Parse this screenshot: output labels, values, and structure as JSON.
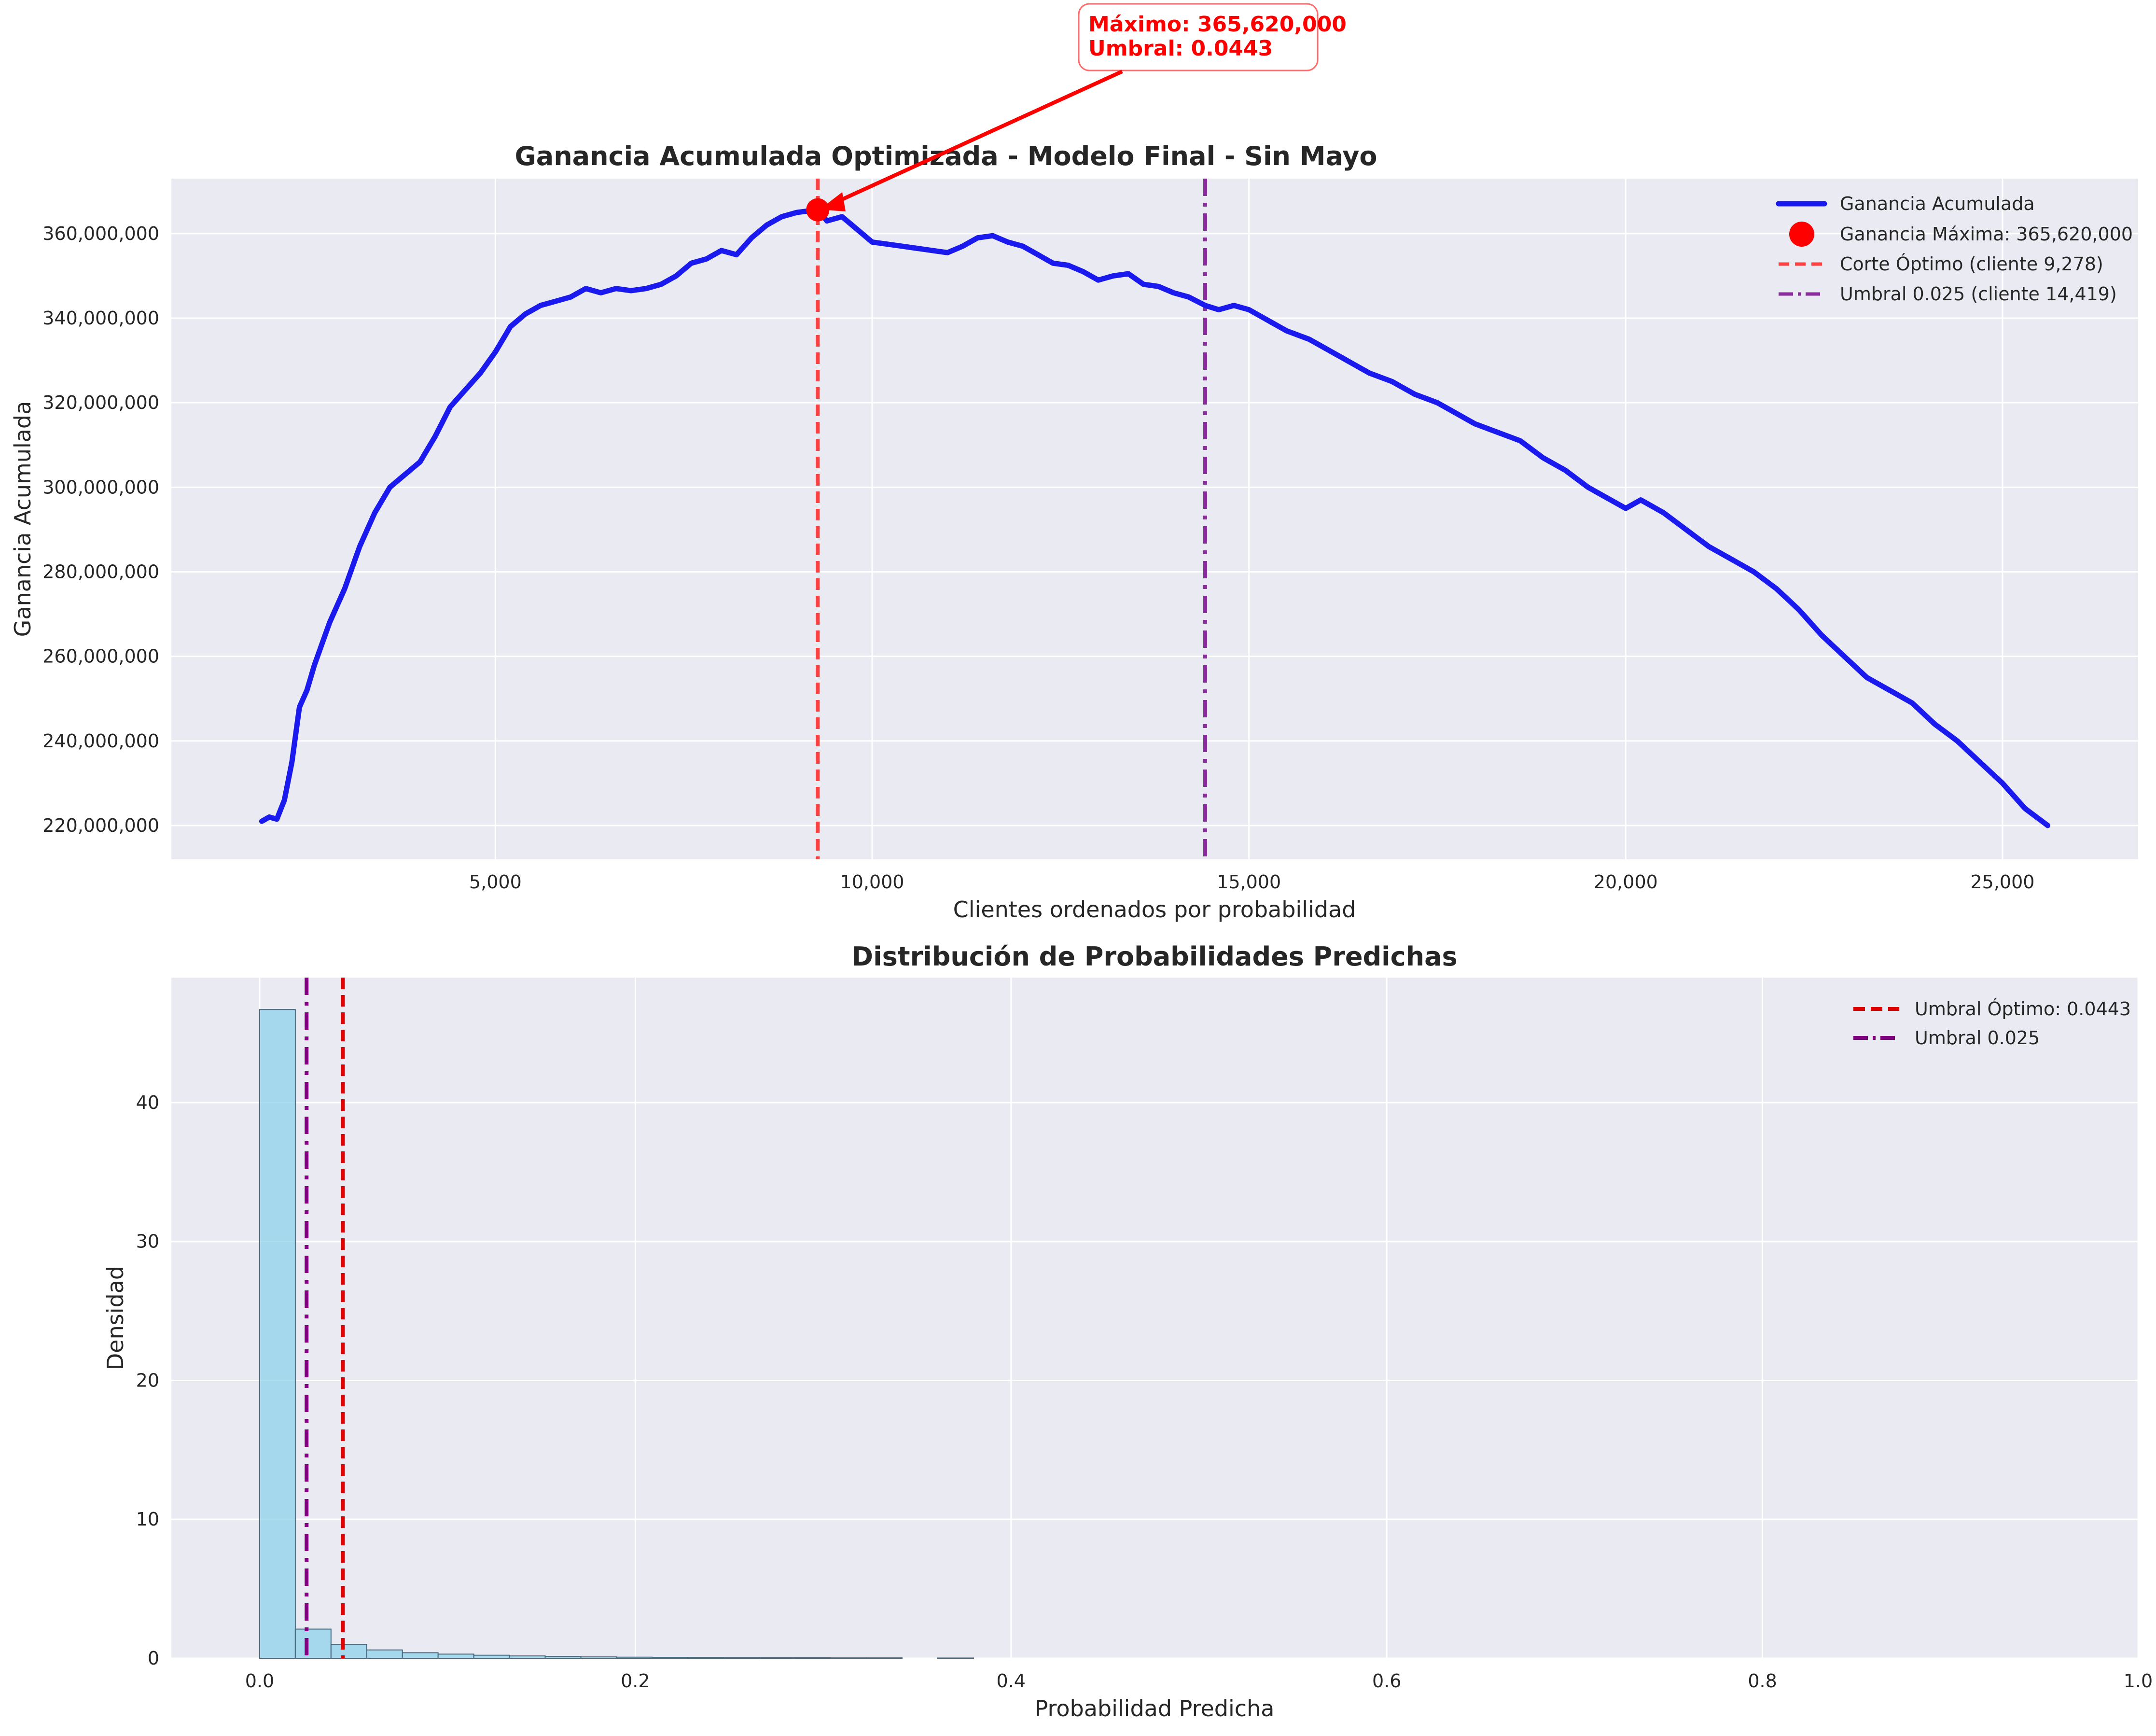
{
  "chart_data": [
    {
      "type": "line",
      "title": "Ganancia Acumulada Optimizada - Modelo Final - Sin Mayo",
      "xlabel": "Clientes ordenados por probabilidad",
      "ylabel": "Ganancia Acumulada",
      "xlim": [
        700,
        26800
      ],
      "ylim": [
        212000000,
        373000000
      ],
      "xticks": [
        5000,
        10000,
        15000,
        20000,
        25000
      ],
      "xtick_labels": [
        "5,000",
        "10,000",
        "15,000",
        "20,000",
        "25,000"
      ],
      "yticks": [
        220000000,
        240000000,
        260000000,
        280000000,
        300000000,
        320000000,
        340000000,
        360000000
      ],
      "ytick_labels": [
        "220,000,000",
        "240,000,000",
        "260,000,000",
        "280,000,000",
        "300,000,000",
        "320,000,000",
        "340,000,000",
        "360,000,000"
      ],
      "grid": true,
      "legend_position": "top-right",
      "series": [
        {
          "name": "Ganancia Acumulada",
          "color": "#1a1aee",
          "x": [
            1900,
            2000,
            2100,
            2200,
            2300,
            2400,
            2500,
            2600,
            2800,
            3000,
            3200,
            3400,
            3600,
            3800,
            4000,
            4200,
            4400,
            4600,
            4800,
            5000,
            5200,
            5400,
            5600,
            5800,
            6000,
            6200,
            6400,
            6600,
            6800,
            7000,
            7200,
            7400,
            7600,
            7800,
            8000,
            8200,
            8400,
            8600,
            8800,
            9000,
            9278,
            9400,
            9600,
            9800,
            10000,
            10200,
            10400,
            10600,
            10800,
            11000,
            11200,
            11400,
            11600,
            11800,
            12000,
            12200,
            12400,
            12600,
            12800,
            13000,
            13200,
            13400,
            13600,
            13800,
            14000,
            14200,
            14419,
            14600,
            14800,
            15000,
            15200,
            15500,
            15800,
            16000,
            16300,
            16600,
            16900,
            17200,
            17500,
            17800,
            18000,
            18300,
            18600,
            18900,
            19200,
            19500,
            19800,
            20000,
            20200,
            20500,
            20800,
            21100,
            21400,
            21700,
            22000,
            22300,
            22600,
            22900,
            23200,
            23500,
            23800,
            24100,
            24400,
            24700,
            25000,
            25300,
            25600
          ],
          "y": [
            221000000,
            222000000,
            221500000,
            226000000,
            235000000,
            248000000,
            252000000,
            258000000,
            268000000,
            276000000,
            286000000,
            294000000,
            300000000,
            303000000,
            306000000,
            312000000,
            319000000,
            323000000,
            327000000,
            332000000,
            338000000,
            341000000,
            343000000,
            344000000,
            345000000,
            347000000,
            346000000,
            347000000,
            346500000,
            347000000,
            348000000,
            350000000,
            353000000,
            354000000,
            356000000,
            355000000,
            359000000,
            362000000,
            364000000,
            365000000,
            365620000,
            363000000,
            364000000,
            361000000,
            358000000,
            357500000,
            357000000,
            356500000,
            356000000,
            355500000,
            357000000,
            359000000,
            359500000,
            358000000,
            357000000,
            355000000,
            353000000,
            352500000,
            351000000,
            349000000,
            350000000,
            350500000,
            348000000,
            347500000,
            346000000,
            345000000,
            343000000,
            342000000,
            343000000,
            342000000,
            340000000,
            337000000,
            335000000,
            333000000,
            330000000,
            327000000,
            325000000,
            322000000,
            320000000,
            317000000,
            315000000,
            313000000,
            311000000,
            307000000,
            304000000,
            300000000,
            297000000,
            295000000,
            297000000,
            294000000,
            290000000,
            286000000,
            283000000,
            280000000,
            276000000,
            271000000,
            265000000,
            260000000,
            255000000,
            252000000,
            249000000,
            244000000,
            240000000,
            235000000,
            230000000,
            224000000,
            220000000
          ]
        }
      ],
      "max_point": {
        "label": "Ganancia Máxima: 365,620,000",
        "x": 9278,
        "y": 365620000,
        "color": "#ff0000"
      },
      "vlines": [
        {
          "label": "Corte Óptimo (cliente 9,278)",
          "x": 9278,
          "color": "#ff0000",
          "style": "dashed"
        },
        {
          "label": "Umbral 0.025 (cliente 14,419)",
          "x": 14419,
          "color": "#800080",
          "style": "dashdot"
        }
      ],
      "annotation": {
        "line1": "Máximo: 365,620,000",
        "line2": "Umbral: 0.0443",
        "color": "#ff0000"
      }
    },
    {
      "type": "bar",
      "title": "Distribución de Probabilidades Predichas",
      "xlabel": "Probabilidad Predicha",
      "ylabel": "Densidad",
      "xlim": [
        -0.047,
        1.0
      ],
      "ylim": [
        0,
        49
      ],
      "xticks": [
        0.0,
        0.2,
        0.4,
        0.6,
        0.8,
        1.0
      ],
      "xtick_labels": [
        "0.0",
        "0.2",
        "0.4",
        "0.6",
        "0.8",
        "1.0"
      ],
      "yticks": [
        0,
        10,
        20,
        30,
        40
      ],
      "ytick_labels": [
        "0",
        "10",
        "20",
        "30",
        "40"
      ],
      "grid": true,
      "legend_position": "top-right",
      "bar_color": "#87ceeb",
      "bins": {
        "edges": [
          0.0,
          0.019,
          0.038,
          0.057,
          0.076,
          0.095,
          0.114,
          0.133,
          0.152,
          0.171,
          0.19,
          0.209,
          0.228,
          0.247,
          0.266,
          0.285,
          0.304,
          0.323,
          0.342,
          0.361,
          0.38
        ],
        "values": [
          46.7,
          2.1,
          1.0,
          0.6,
          0.4,
          0.3,
          0.22,
          0.17,
          0.13,
          0.1,
          0.08,
          0.07,
          0.06,
          0.05,
          0.04,
          0.04,
          0.03,
          0.03,
          0.0,
          0.02
        ]
      },
      "vlines": [
        {
          "label": "Umbral Óptimo: 0.0443",
          "x": 0.0443,
          "color": "#e00000",
          "style": "dashed"
        },
        {
          "label": "Umbral 0.025",
          "x": 0.025,
          "color": "#800080",
          "style": "dashdot"
        }
      ]
    }
  ]
}
